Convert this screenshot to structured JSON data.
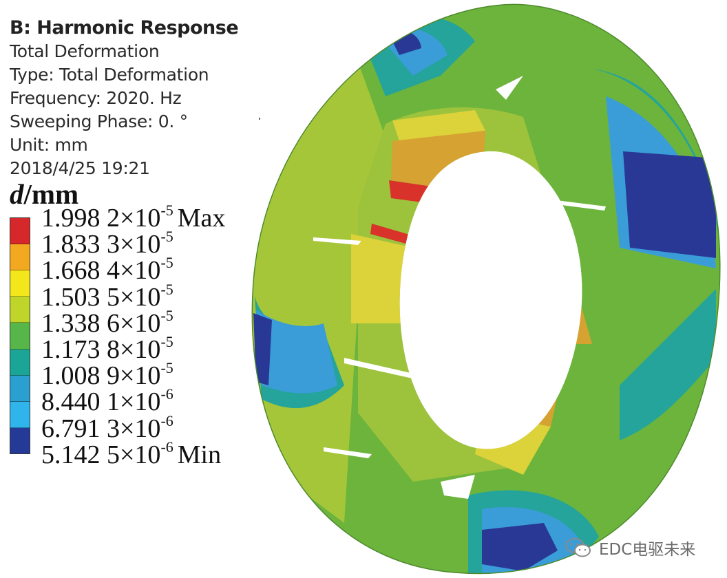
{
  "header": {
    "title": "B: Harmonic Response",
    "lines": [
      "Total Deformation",
      "Type: Total Deformation",
      "Frequency: 2020. Hz",
      "Sweeping Phase: 0. °",
      "Unit: mm",
      "2018/4/25 19:21"
    ]
  },
  "legend": {
    "variable": "d",
    "unit": "/mm",
    "entries": [
      {
        "mantissa": "1.998 2",
        "exp": "-5",
        "tag": "Max",
        "color": "#d6282a"
      },
      {
        "mantissa": "1.833 3",
        "exp": "-5",
        "tag": "",
        "color": "#f2a81f"
      },
      {
        "mantissa": "1.668 4",
        "exp": "-5",
        "tag": "",
        "color": "#f3e61b"
      },
      {
        "mantissa": "1.503 5",
        "exp": "-5",
        "tag": "",
        "color": "#bfd52a"
      },
      {
        "mantissa": "1.338 6",
        "exp": "-5",
        "tag": "",
        "color": "#57b64a"
      },
      {
        "mantissa": "1.173 8",
        "exp": "-5",
        "tag": "",
        "color": "#1aa596"
      },
      {
        "mantissa": "1.008 9",
        "exp": "-5",
        "tag": "",
        "color": "#2b9fd0"
      },
      {
        "mantissa": "8.440 1",
        "exp": "-6",
        "tag": "",
        "color": "#2fb4ec"
      },
      {
        "mantissa": "6.791 3",
        "exp": "-6",
        "tag": "",
        "color": "#253a96"
      },
      {
        "mantissa": "5.142 5",
        "exp": "-6",
        "tag": "Min",
        "color": ""
      }
    ],
    "times": "×10"
  },
  "figure": {
    "colors": {
      "green": "#6cb43c",
      "lime": "#a6c63a",
      "yellow": "#dcd23a",
      "orange": "#d6a231",
      "red": "#d8322a",
      "teal": "#24a49a",
      "blue": "#3a9dd8",
      "cyan": "#3cb6ea",
      "navy": "#2a3895"
    }
  },
  "watermark": {
    "text": "EDC电驱未来",
    "icon": "wechat-icon"
  }
}
